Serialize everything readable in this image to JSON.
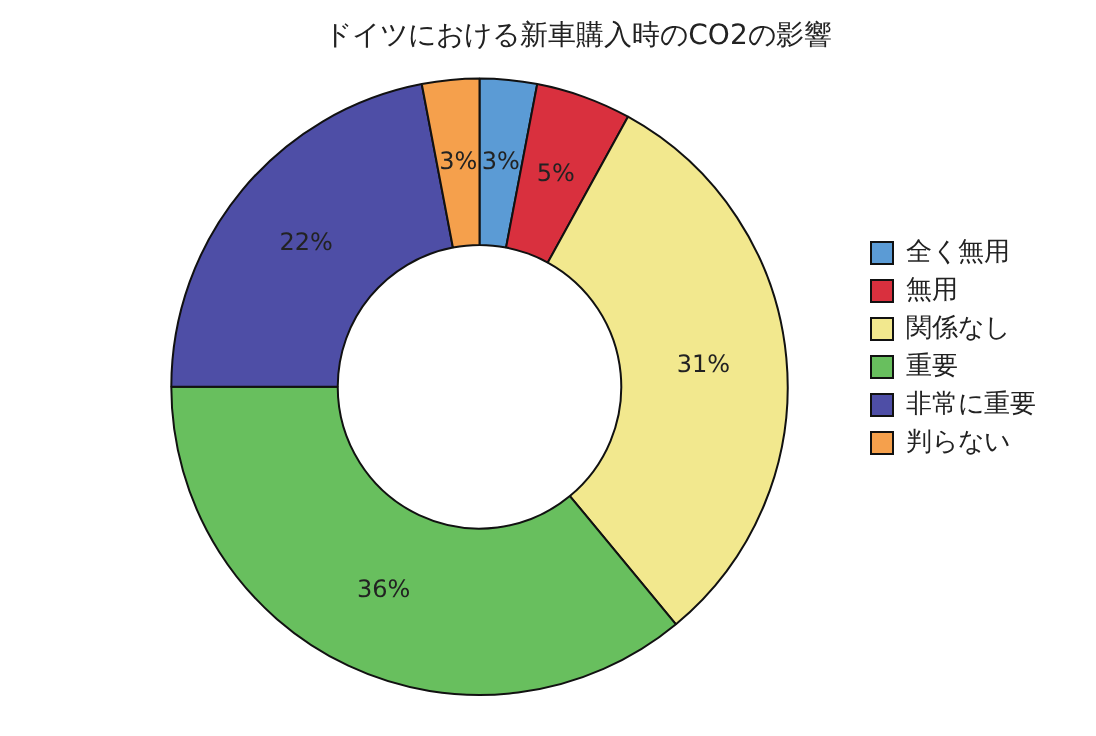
{
  "chart_data": {
    "type": "donut",
    "title": "ドイツにおける新車購入時のCO2の影響",
    "categories": [
      "全く無用",
      "無用",
      "関係なし",
      "重要",
      "非常に重要",
      "判らない"
    ],
    "values": [
      3,
      5,
      31,
      36,
      22,
      3
    ],
    "value_labels": [
      "3%",
      "5%",
      "31%",
      "36%",
      "22%",
      "3%"
    ],
    "colors": [
      "#5b9bd5",
      "#d9303e",
      "#f2e88e",
      "#68bf5e",
      "#4e4ea6",
      "#f5a04c"
    ],
    "legend": "right"
  }
}
